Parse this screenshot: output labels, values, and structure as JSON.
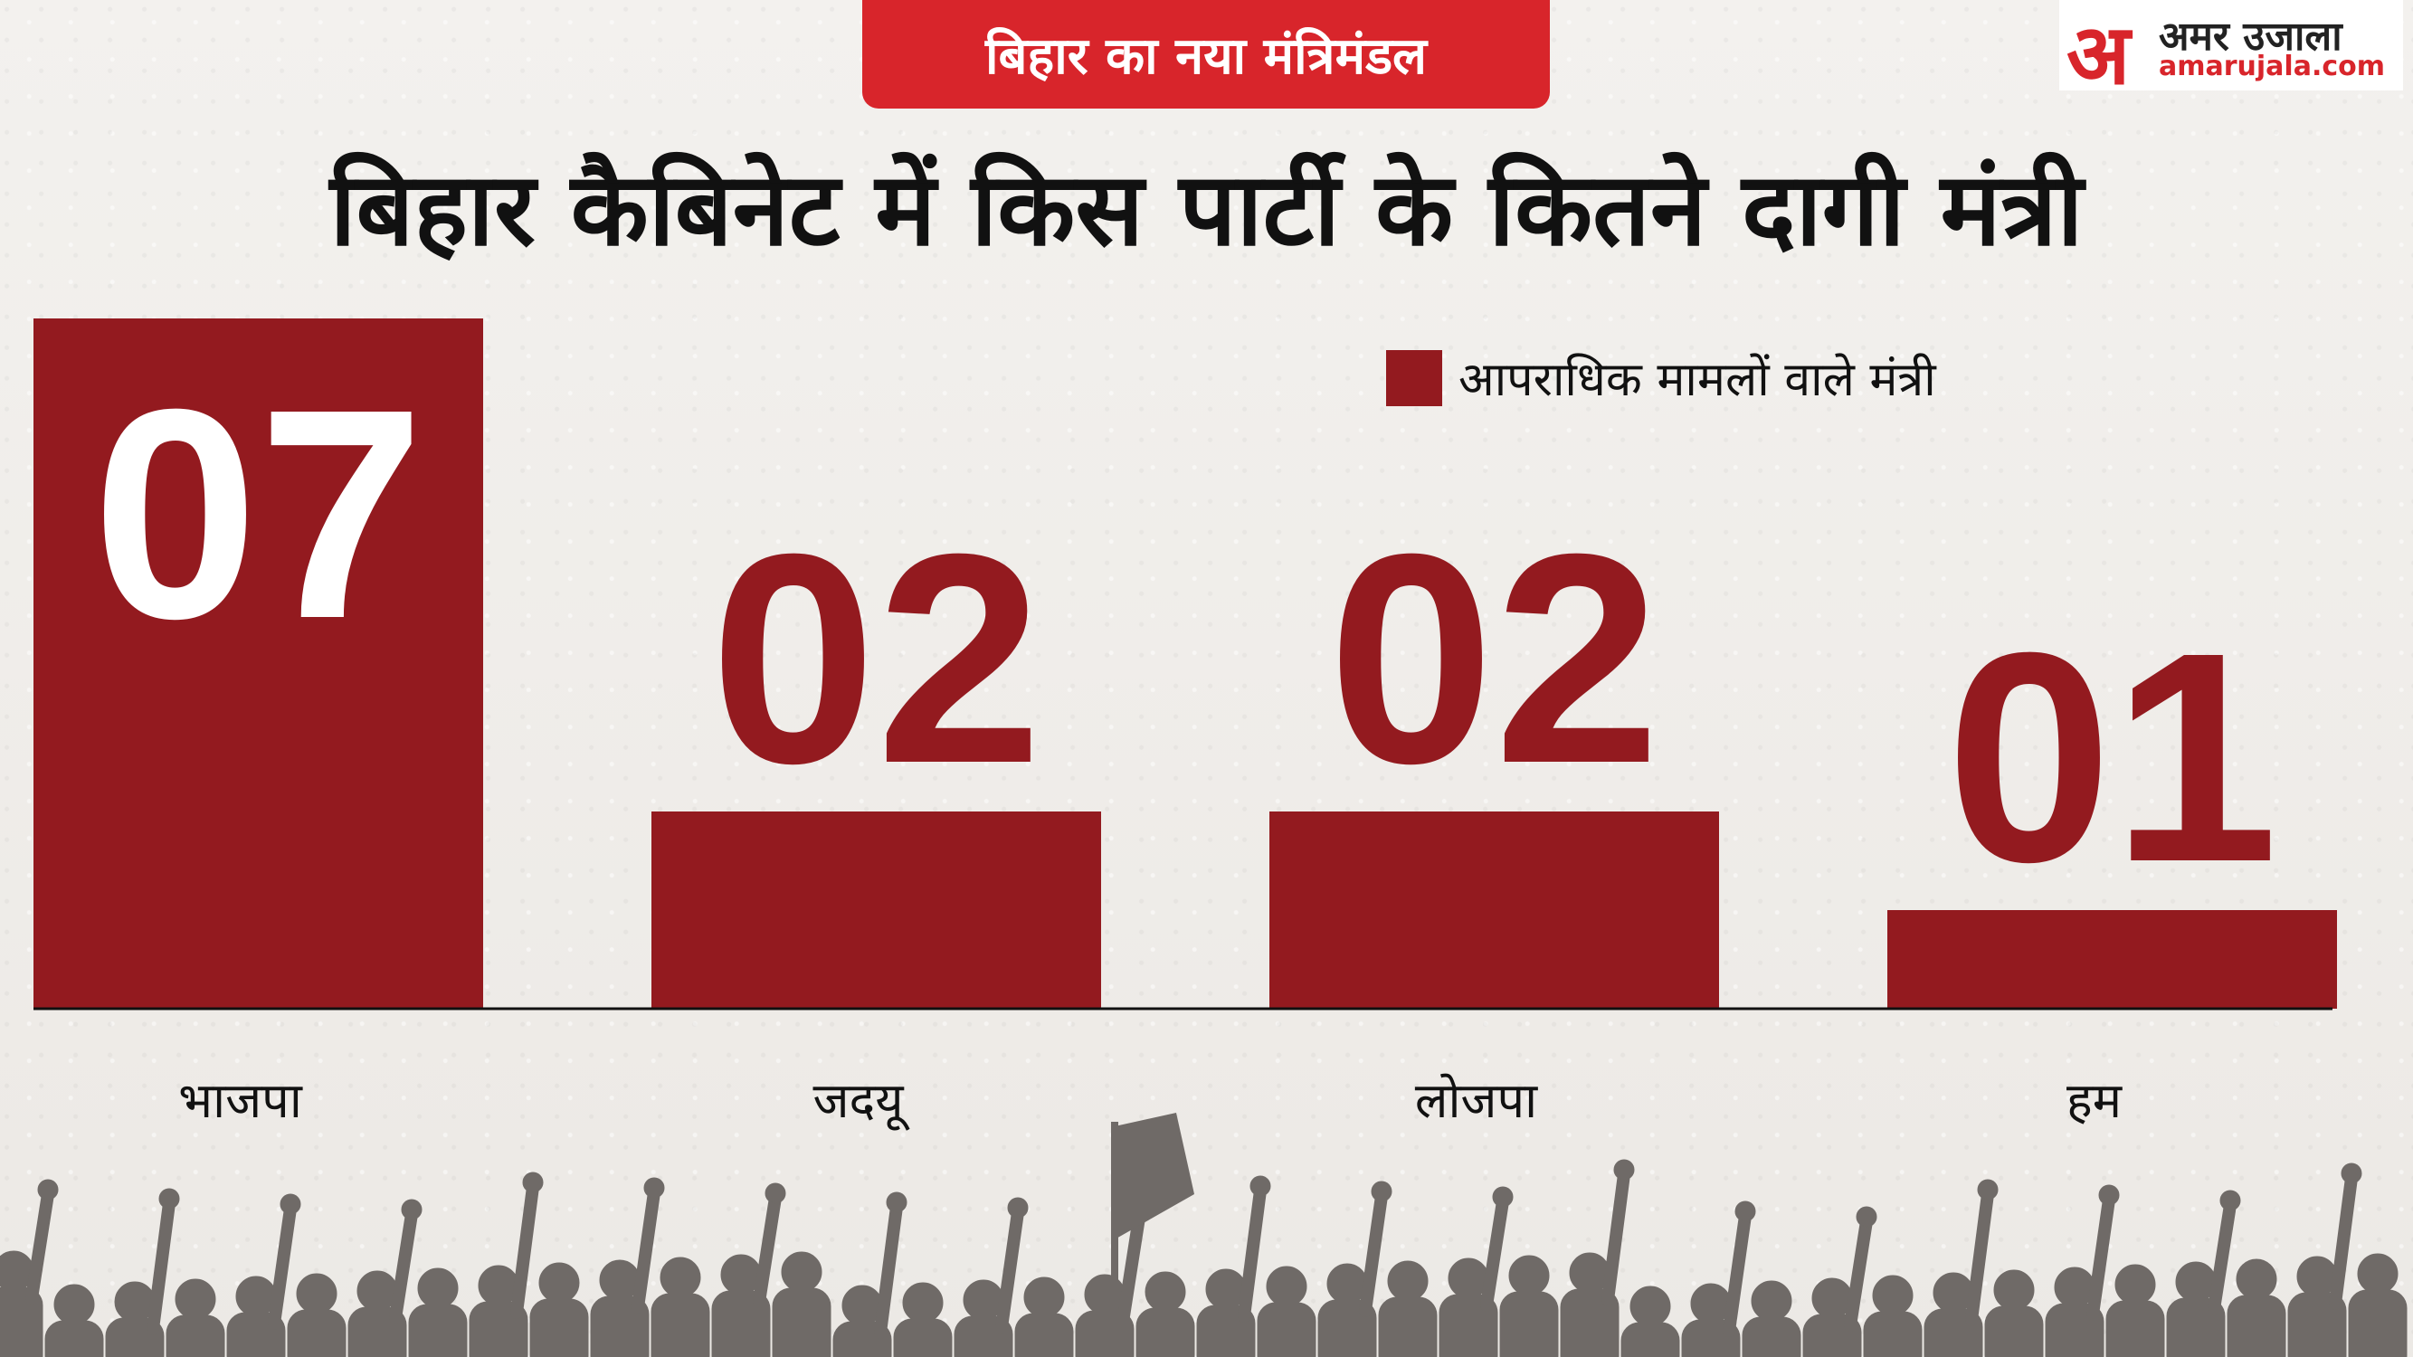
{
  "header": {
    "tag": "बिहार का नया मंत्रिमंडल",
    "title": "बिहार कैबिनेट में किस पार्टी के कितने दागी मंत्री"
  },
  "logo": {
    "mark": "अ",
    "name": "अमर उजाला",
    "url": "amarujala.com"
  },
  "colors": {
    "bar": "#931a1f",
    "accent": "#d8252b",
    "crowd": "#6f6a67"
  },
  "chart_data": {
    "type": "bar",
    "categories": [
      "भाजपा",
      "जदयू",
      "लोजपा",
      "हम"
    ],
    "values": [
      7,
      2,
      2,
      1
    ],
    "value_labels": [
      "07",
      "02",
      "02",
      "01"
    ],
    "legend": "आपराधिक मामलों वाले मंत्री",
    "legend_position": "top-right",
    "title": "बिहार कैबिनेट में किस पार्टी के कितने दागी मंत्री",
    "xlabel": "",
    "ylabel": "",
    "ylim": [
      0,
      7
    ],
    "grid": false
  }
}
